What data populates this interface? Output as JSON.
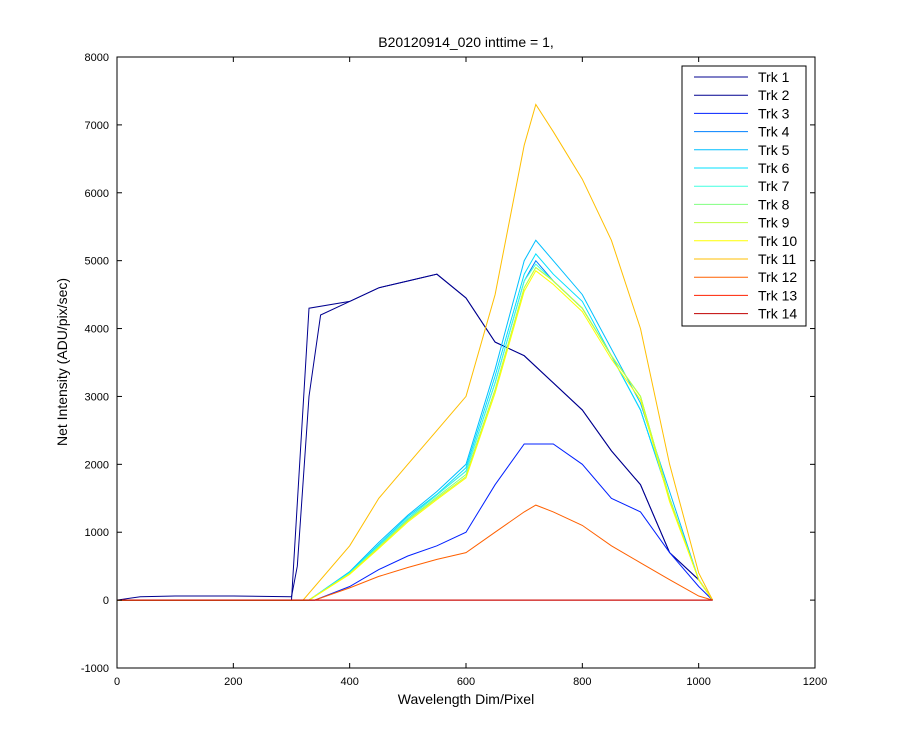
{
  "chart_data": {
    "type": "line",
    "title": "B20120914_020 inttime = 1,",
    "xlabel": "Wavelength Dim/Pixel",
    "ylabel": "Net Intensity (ADU/pix/sec)",
    "xlim": [
      0,
      1200
    ],
    "ylim": [
      -1000,
      8000
    ],
    "xticks": [
      0,
      200,
      400,
      600,
      800,
      1000,
      1200
    ],
    "yticks": [
      -1000,
      0,
      1000,
      2000,
      3000,
      4000,
      5000,
      6000,
      7000,
      8000
    ],
    "grid": false,
    "legend_position": "top-right",
    "series": [
      {
        "name": "Trk 1",
        "color": "#00008f",
        "points": [
          [
            0,
            0
          ],
          [
            300,
            0
          ],
          [
            330,
            4300
          ],
          [
            400,
            4400
          ],
          [
            450,
            4600
          ],
          [
            500,
            4700
          ],
          [
            550,
            4800
          ],
          [
            600,
            4450
          ],
          [
            650,
            3800
          ],
          [
            700,
            3600
          ],
          [
            750,
            3200
          ],
          [
            800,
            2800
          ],
          [
            850,
            2200
          ],
          [
            900,
            1700
          ],
          [
            950,
            700
          ],
          [
            1000,
            300
          ],
          [
            1020,
            50
          ],
          [
            1024,
            0
          ]
        ]
      },
      {
        "name": "Trk 2",
        "color": "#00008f",
        "points": [
          [
            0,
            0
          ],
          [
            40,
            50
          ],
          [
            100,
            60
          ],
          [
            200,
            60
          ],
          [
            300,
            50
          ],
          [
            310,
            500
          ],
          [
            330,
            3000
          ],
          [
            350,
            4200
          ],
          [
            400,
            4400
          ],
          [
            450,
            4600
          ],
          [
            500,
            4700
          ],
          [
            550,
            4800
          ],
          [
            600,
            4450
          ],
          [
            650,
            3800
          ],
          [
            700,
            3600
          ],
          [
            750,
            3200
          ],
          [
            800,
            2800
          ],
          [
            850,
            2200
          ],
          [
            900,
            1700
          ],
          [
            950,
            700
          ],
          [
            1000,
            300
          ],
          [
            1020,
            50
          ],
          [
            1024,
            0
          ]
        ]
      },
      {
        "name": "Trk 3",
        "color": "#0020ff",
        "points": [
          [
            0,
            0
          ],
          [
            340,
            0
          ],
          [
            400,
            200
          ],
          [
            450,
            450
          ],
          [
            500,
            650
          ],
          [
            550,
            800
          ],
          [
            600,
            1000
          ],
          [
            650,
            1700
          ],
          [
            700,
            2300
          ],
          [
            750,
            2300
          ],
          [
            800,
            2000
          ],
          [
            850,
            1500
          ],
          [
            900,
            1300
          ],
          [
            950,
            700
          ],
          [
            1000,
            200
          ],
          [
            1024,
            0
          ]
        ]
      },
      {
        "name": "Trk 4",
        "color": "#0080ff",
        "points": [
          [
            0,
            0
          ],
          [
            330,
            0
          ],
          [
            400,
            400
          ],
          [
            450,
            800
          ],
          [
            500,
            1200
          ],
          [
            550,
            1550
          ],
          [
            600,
            1900
          ],
          [
            650,
            3200
          ],
          [
            700,
            4700
          ],
          [
            720,
            5000
          ],
          [
            750,
            4700
          ],
          [
            800,
            4300
          ],
          [
            850,
            3600
          ],
          [
            900,
            2800
          ],
          [
            950,
            1500
          ],
          [
            1000,
            300
          ],
          [
            1024,
            0
          ]
        ]
      },
      {
        "name": "Trk 5",
        "color": "#00bfff",
        "points": [
          [
            0,
            0
          ],
          [
            330,
            0
          ],
          [
            400,
            420
          ],
          [
            450,
            850
          ],
          [
            500,
            1250
          ],
          [
            550,
            1600
          ],
          [
            600,
            2000
          ],
          [
            650,
            3400
          ],
          [
            700,
            5000
          ],
          [
            720,
            5300
          ],
          [
            750,
            5000
          ],
          [
            800,
            4500
          ],
          [
            850,
            3700
          ],
          [
            900,
            2900
          ],
          [
            950,
            1600
          ],
          [
            1000,
            300
          ],
          [
            1024,
            0
          ]
        ]
      },
      {
        "name": "Trk 6",
        "color": "#00e0ff",
        "points": [
          [
            0,
            0
          ],
          [
            330,
            0
          ],
          [
            400,
            410
          ],
          [
            450,
            820
          ],
          [
            500,
            1230
          ],
          [
            550,
            1560
          ],
          [
            600,
            1950
          ],
          [
            650,
            3300
          ],
          [
            700,
            4800
          ],
          [
            720,
            5100
          ],
          [
            750,
            4800
          ],
          [
            800,
            4400
          ],
          [
            850,
            3600
          ],
          [
            900,
            2800
          ],
          [
            950,
            1500
          ],
          [
            1000,
            300
          ],
          [
            1024,
            0
          ]
        ]
      },
      {
        "name": "Trk 7",
        "color": "#40ffe0",
        "points": [
          [
            0,
            0
          ],
          [
            330,
            0
          ],
          [
            400,
            400
          ],
          [
            450,
            800
          ],
          [
            500,
            1200
          ],
          [
            550,
            1550
          ],
          [
            600,
            1900
          ],
          [
            650,
            3200
          ],
          [
            700,
            4700
          ],
          [
            720,
            4950
          ],
          [
            750,
            4700
          ],
          [
            800,
            4300
          ],
          [
            850,
            3600
          ],
          [
            900,
            3000
          ],
          [
            950,
            1500
          ],
          [
            1000,
            300
          ],
          [
            1024,
            0
          ]
        ]
      },
      {
        "name": "Trk 8",
        "color": "#80ff80",
        "points": [
          [
            0,
            0
          ],
          [
            330,
            0
          ],
          [
            400,
            390
          ],
          [
            450,
            780
          ],
          [
            500,
            1180
          ],
          [
            550,
            1520
          ],
          [
            600,
            1850
          ],
          [
            650,
            3100
          ],
          [
            700,
            4600
          ],
          [
            720,
            4900
          ],
          [
            750,
            4700
          ],
          [
            800,
            4300
          ],
          [
            850,
            3600
          ],
          [
            900,
            3000
          ],
          [
            950,
            1500
          ],
          [
            1000,
            300
          ],
          [
            1024,
            0
          ]
        ]
      },
      {
        "name": "Trk 9",
        "color": "#c0ff40",
        "points": [
          [
            0,
            0
          ],
          [
            330,
            0
          ],
          [
            400,
            390
          ],
          [
            450,
            780
          ],
          [
            500,
            1170
          ],
          [
            550,
            1500
          ],
          [
            600,
            1820
          ],
          [
            650,
            3100
          ],
          [
            700,
            4600
          ],
          [
            720,
            4900
          ],
          [
            750,
            4700
          ],
          [
            800,
            4300
          ],
          [
            850,
            3600
          ],
          [
            900,
            3000
          ],
          [
            950,
            1500
          ],
          [
            1000,
            300
          ],
          [
            1024,
            0
          ]
        ]
      },
      {
        "name": "Trk 10",
        "color": "#ffff00",
        "points": [
          [
            0,
            0
          ],
          [
            330,
            0
          ],
          [
            400,
            380
          ],
          [
            450,
            760
          ],
          [
            500,
            1150
          ],
          [
            550,
            1480
          ],
          [
            600,
            1800
          ],
          [
            650,
            3050
          ],
          [
            700,
            4550
          ],
          [
            720,
            4850
          ],
          [
            750,
            4650
          ],
          [
            800,
            4250
          ],
          [
            850,
            3550
          ],
          [
            900,
            2950
          ],
          [
            950,
            1450
          ],
          [
            1000,
            300
          ],
          [
            1024,
            0
          ]
        ]
      },
      {
        "name": "Trk 11",
        "color": "#ffbf00",
        "points": [
          [
            0,
            0
          ],
          [
            320,
            0
          ],
          [
            400,
            800
          ],
          [
            450,
            1500
          ],
          [
            500,
            2000
          ],
          [
            550,
            2500
          ],
          [
            600,
            3000
          ],
          [
            650,
            4500
          ],
          [
            700,
            6700
          ],
          [
            720,
            7300
          ],
          [
            750,
            6900
          ],
          [
            800,
            6200
          ],
          [
            850,
            5300
          ],
          [
            900,
            4000
          ],
          [
            950,
            2000
          ],
          [
            1000,
            400
          ],
          [
            1024,
            0
          ]
        ]
      },
      {
        "name": "Trk 12",
        "color": "#ff6000",
        "points": [
          [
            0,
            0
          ],
          [
            340,
            0
          ],
          [
            400,
            180
          ],
          [
            450,
            350
          ],
          [
            500,
            480
          ],
          [
            550,
            600
          ],
          [
            600,
            700
          ],
          [
            650,
            1000
          ],
          [
            700,
            1300
          ],
          [
            720,
            1400
          ],
          [
            750,
            1300
          ],
          [
            800,
            1100
          ],
          [
            850,
            800
          ],
          [
            900,
            550
          ],
          [
            950,
            300
          ],
          [
            1000,
            60
          ],
          [
            1024,
            0
          ]
        ]
      },
      {
        "name": "Trk 13",
        "color": "#ff2000",
        "points": [
          [
            0,
            0
          ],
          [
            1024,
            0
          ]
        ]
      },
      {
        "name": "Trk 14",
        "color": "#c00000",
        "points": [
          [
            0,
            0
          ],
          [
            1024,
            0
          ]
        ]
      }
    ]
  }
}
